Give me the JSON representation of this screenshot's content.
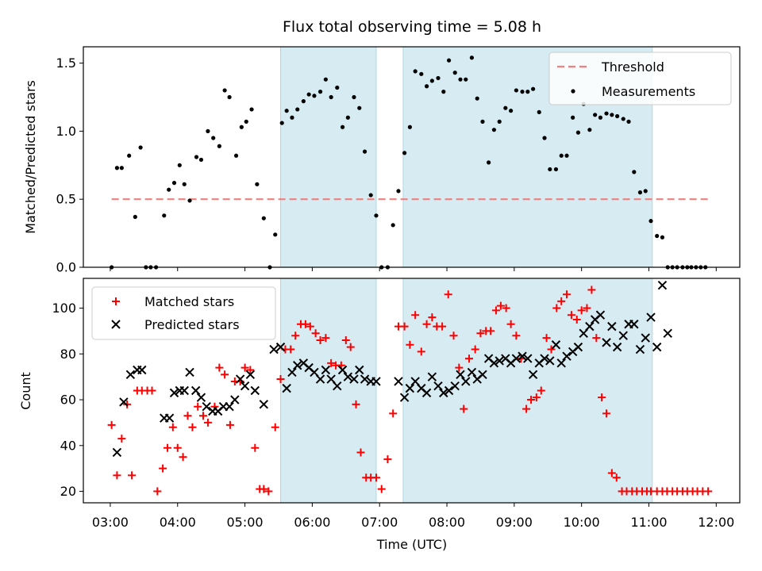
{
  "chart_data": {
    "type": "scatter",
    "title": "Flux total observing time = 5.08 h",
    "xlabel": "Time (UTC)",
    "x_ticks": [
      "03:00",
      "04:00",
      "05:00",
      "06:00",
      "07:00",
      "08:00",
      "09:00",
      "10:00",
      "11:00",
      "12:00"
    ],
    "x_range_hours": [
      2.6,
      12.35
    ],
    "shaded_intervals": [
      [
        5.53,
        6.95
      ],
      [
        7.35,
        11.05
      ]
    ],
    "colors": {
      "shade": "#add8e6",
      "threshold": "#f08080",
      "matched": "#ff0000",
      "predicted": "#000000",
      "measurements": "#000000"
    },
    "panels": [
      {
        "ylabel": "Matched/Predicted stars",
        "ylim": [
          0,
          1.62
        ],
        "y_ticks": [
          0.0,
          0.5,
          1.0,
          1.5
        ],
        "y_tick_labels": [
          "0.0",
          "0.5",
          "1.0",
          "1.5"
        ],
        "legend_position": "upper right",
        "threshold": {
          "name": "Threshold",
          "y": 0.5,
          "x_range": [
            3.02,
            11.88
          ]
        },
        "series": [
          {
            "name": "Measurements",
            "marker": "dot",
            "x": [
              3.02,
              3.1,
              3.17,
              3.28,
              3.37,
              3.45,
              3.53,
              3.6,
              3.68,
              3.8,
              3.87,
              3.95,
              4.03,
              4.1,
              4.18,
              4.28,
              4.35,
              4.45,
              4.53,
              4.62,
              4.7,
              4.77,
              4.87,
              4.95,
              5.02,
              5.1,
              5.18,
              5.28,
              5.37,
              5.45,
              5.55,
              5.62,
              5.7,
              5.78,
              5.87,
              5.95,
              6.03,
              6.12,
              6.2,
              6.28,
              6.37,
              6.45,
              6.53,
              6.62,
              6.7,
              6.78,
              6.87,
              6.95,
              7.03,
              7.12,
              7.2,
              7.28,
              7.37,
              7.45,
              7.53,
              7.62,
              7.7,
              7.78,
              7.87,
              7.95,
              8.03,
              8.12,
              8.2,
              8.28,
              8.37,
              8.45,
              8.53,
              8.62,
              8.7,
              8.78,
              8.87,
              8.95,
              9.03,
              9.12,
              9.2,
              9.28,
              9.37,
              9.45,
              9.53,
              9.62,
              9.7,
              9.78,
              9.87,
              9.95,
              10.03,
              10.12,
              10.2,
              10.28,
              10.37,
              10.45,
              10.53,
              10.62,
              10.7,
              10.78,
              10.87,
              10.95,
              11.03,
              11.12,
              11.2,
              11.28,
              11.35,
              11.42,
              11.5,
              11.57,
              11.63,
              11.7,
              11.77,
              11.84
            ],
            "y": [
              0.0,
              0.73,
              0.73,
              0.82,
              0.37,
              0.88,
              0.0,
              0.0,
              0.0,
              0.38,
              0.57,
              0.62,
              0.75,
              0.61,
              0.49,
              0.81,
              0.79,
              1.0,
              0.95,
              0.89,
              1.3,
              1.25,
              0.82,
              1.03,
              1.07,
              1.16,
              0.61,
              0.36,
              0.0,
              0.24,
              1.06,
              1.15,
              1.1,
              1.16,
              1.22,
              1.27,
              1.26,
              1.29,
              1.38,
              1.25,
              1.32,
              1.03,
              1.1,
              1.25,
              1.17,
              0.85,
              0.53,
              0.38,
              0.0,
              0.0,
              0.31,
              0.56,
              0.84,
              1.03,
              1.44,
              1.42,
              1.33,
              1.37,
              1.39,
              1.29,
              1.52,
              1.43,
              1.38,
              1.38,
              1.54,
              1.24,
              1.07,
              0.77,
              1.01,
              1.07,
              1.17,
              1.15,
              1.3,
              1.29,
              1.29,
              1.31,
              1.14,
              0.95,
              0.72,
              0.72,
              0.82,
              0.82,
              1.1,
              0.99,
              1.2,
              1.01,
              1.12,
              1.1,
              1.13,
              1.12,
              1.11,
              1.09,
              1.07,
              0.7,
              0.55,
              0.56,
              0.34,
              0.23,
              0.22,
              0.0,
              0.0,
              0.0,
              0.0,
              0.0,
              0.0,
              0.0,
              0.0,
              0.0
            ]
          }
        ]
      },
      {
        "ylabel": "Count",
        "ylim": [
          15,
          113
        ],
        "y_ticks": [
          20,
          40,
          60,
          80,
          100
        ],
        "y_tick_labels": [
          "20",
          "40",
          "60",
          "80",
          "100"
        ],
        "legend_position": "upper left",
        "series": [
          {
            "name": "Matched stars",
            "marker": "plus",
            "x": [
              3.02,
              3.1,
              3.17,
              3.25,
              3.32,
              3.4,
              3.47,
              3.55,
              3.62,
              3.7,
              3.78,
              3.85,
              3.93,
              4.0,
              4.08,
              4.15,
              4.22,
              4.3,
              4.38,
              4.45,
              4.55,
              4.62,
              4.7,
              4.78,
              4.85,
              4.93,
              5.0,
              5.08,
              5.15,
              5.22,
              5.28,
              5.35,
              5.45,
              5.53,
              5.6,
              5.68,
              5.75,
              5.83,
              5.9,
              5.97,
              6.05,
              6.12,
              6.2,
              6.28,
              6.35,
              6.43,
              6.5,
              6.57,
              6.65,
              6.72,
              6.8,
              6.87,
              6.95,
              7.03,
              7.12,
              7.2,
              7.28,
              7.37,
              7.45,
              7.53,
              7.62,
              7.7,
              7.78,
              7.85,
              7.93,
              8.02,
              8.1,
              8.18,
              8.25,
              8.33,
              8.42,
              8.5,
              8.58,
              8.65,
              8.73,
              8.8,
              8.88,
              8.95,
              9.03,
              9.1,
              9.18,
              9.25,
              9.33,
              9.4,
              9.48,
              9.55,
              9.63,
              9.7,
              9.78,
              9.85,
              9.93,
              10.0,
              10.08,
              10.15,
              10.22,
              10.3,
              10.37,
              10.45,
              10.52,
              10.6,
              10.67,
              10.75,
              10.82,
              10.9,
              10.97,
              11.03,
              11.12,
              11.2,
              11.27,
              11.35,
              11.42,
              11.5,
              11.57,
              11.65,
              11.72,
              11.8,
              11.88
            ],
            "y": [
              49,
              27,
              43,
              58,
              27,
              64,
              64,
              64,
              64,
              20,
              30,
              39,
              48,
              39,
              35,
              53,
              48,
              57,
              53,
              50,
              57,
              74,
              71,
              49,
              68,
              68,
              74,
              73,
              39,
              21,
              21,
              20,
              48,
              69,
              82,
              82,
              88,
              93,
              93,
              92,
              89,
              86,
              87,
              76,
              75,
              75,
              86,
              83,
              58,
              37,
              26,
              26,
              26,
              21,
              34,
              54,
              92,
              92,
              84,
              97,
              81,
              93,
              96,
              92,
              92,
              106,
              88,
              74,
              56,
              78,
              82,
              89,
              90,
              90,
              99,
              101,
              100,
              93,
              88,
              78,
              56,
              60,
              61,
              64,
              87,
              82,
              100,
              103,
              106,
              97,
              95,
              99,
              100,
              108,
              87,
              61,
              54,
              28,
              26,
              20,
              20,
              20,
              20,
              20,
              20,
              20,
              20,
              20,
              20,
              20,
              20,
              20,
              20,
              20,
              20,
              20,
              20
            ],
            "note": ""
          },
          {
            "name": "Predicted stars",
            "marker": "x",
            "x": [
              3.1,
              3.2,
              3.3,
              3.4,
              3.47,
              3.8,
              3.88,
              3.95,
              4.03,
              4.1,
              4.18,
              4.27,
              4.35,
              4.43,
              4.52,
              4.6,
              4.68,
              4.77,
              4.85,
              4.93,
              5.0,
              5.08,
              5.15,
              5.28,
              5.43,
              5.53,
              5.62,
              5.7,
              5.78,
              5.87,
              5.95,
              6.03,
              6.12,
              6.2,
              6.28,
              6.37,
              6.45,
              6.53,
              6.62,
              6.7,
              6.78,
              6.87,
              6.95,
              7.28,
              7.37,
              7.45,
              7.53,
              7.62,
              7.7,
              7.78,
              7.87,
              7.95,
              8.03,
              8.12,
              8.2,
              8.28,
              8.37,
              8.45,
              8.53,
              8.62,
              8.7,
              8.78,
              8.87,
              8.95,
              9.03,
              9.12,
              9.2,
              9.28,
              9.37,
              9.45,
              9.53,
              9.62,
              9.7,
              9.78,
              9.87,
              9.95,
              10.03,
              10.12,
              10.2,
              10.28,
              10.37,
              10.45,
              10.53,
              10.62,
              10.7,
              10.78,
              10.87,
              10.95,
              11.03,
              11.12,
              11.2,
              11.28
            ],
            "y": [
              37,
              59,
              71,
              73,
              73,
              52,
              52,
              63,
              64,
              64,
              72,
              64,
              61,
              57,
              55,
              55,
              57,
              57,
              60,
              69,
              66,
              71,
              64,
              58,
              82,
              83,
              65,
              72,
              75,
              76,
              74,
              72,
              69,
              73,
              69,
              66,
              73,
              70,
              69,
              73,
              69,
              68,
              68,
              68,
              61,
              65,
              68,
              65,
              63,
              70,
              66,
              63,
              64,
              66,
              71,
              68,
              72,
              69,
              71,
              78,
              76,
              77,
              78,
              76,
              78,
              79,
              78,
              71,
              76,
              78,
              77,
              84,
              76,
              79,
              81,
              83,
              89,
              92,
              95,
              97,
              85,
              92,
              83,
              88,
              93,
              93,
              82,
              87,
              96,
              83,
              110,
              89
            ]
          }
        ]
      }
    ]
  }
}
